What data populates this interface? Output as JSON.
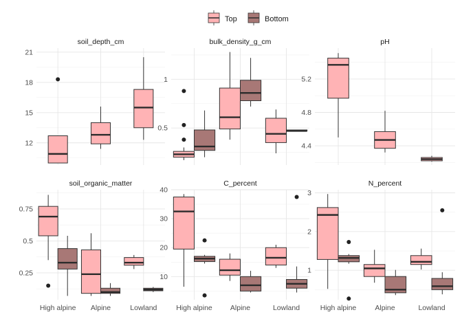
{
  "legend": {
    "placement": "top",
    "items": [
      {
        "label": "Top",
        "color": "#ffb3b5"
      },
      {
        "label": "Bottom",
        "color": "#a87876"
      }
    ]
  },
  "chart_data": [
    {
      "type": "box",
      "title": "soil_depth_cm",
      "categories": [
        "High alpine",
        "Alpine",
        "Lowland"
      ],
      "ylim": [
        9.8,
        21.4
      ],
      "yticks": [
        12,
        15,
        18,
        21
      ],
      "grid": true,
      "series": [
        {
          "name": "Top",
          "color": "#ffb3b5",
          "boxes": [
            {
              "category": "High alpine",
              "min": 10,
              "q1": 10,
              "median": 10.9,
              "q3": 12.7,
              "max": 12.7,
              "outliers": [
                18.3
              ]
            },
            {
              "category": "Alpine",
              "min": 11.4,
              "q1": 11.9,
              "median": 12.8,
              "q3": 14,
              "max": 15.6,
              "outliers": []
            },
            {
              "category": "Lowland",
              "min": 12.3,
              "q1": 13.5,
              "median": 15.5,
              "q3": 17.3,
              "max": 20.5,
              "outliers": []
            }
          ]
        }
      ]
    },
    {
      "type": "box",
      "title": "bulk_density_g_cm",
      "categories": [
        "High alpine",
        "Alpine",
        "Lowland"
      ],
      "ylim": [
        0.12,
        1.32
      ],
      "yticks": [
        0.5,
        1.0
      ],
      "grid": true,
      "series": [
        {
          "name": "Top",
          "color": "#ffb3b5",
          "boxes": [
            {
              "category": "High alpine",
              "min": 0.17,
              "q1": 0.2,
              "median": 0.23,
              "q3": 0.26,
              "max": 0.3,
              "outliers": [
                0.38,
                0.53,
                0.88
              ]
            },
            {
              "category": "Alpine",
              "min": 0.38,
              "q1": 0.49,
              "median": 0.61,
              "q3": 0.91,
              "max": 1.28,
              "outliers": []
            },
            {
              "category": "Lowland",
              "min": 0.24,
              "q1": 0.35,
              "median": 0.44,
              "q3": 0.6,
              "max": 0.69,
              "outliers": []
            }
          ]
        },
        {
          "name": "Bottom",
          "color": "#a87876",
          "boxes": [
            {
              "category": "High alpine",
              "min": 0.2,
              "q1": 0.27,
              "median": 0.31,
              "q3": 0.48,
              "max": 0.68,
              "outliers": []
            },
            {
              "category": "Alpine",
              "min": 0.72,
              "q1": 0.78,
              "median": 0.86,
              "q3": 0.99,
              "max": 1.22,
              "outliers": []
            },
            {
              "category": "Lowland",
              "min": 0.47,
              "q1": 0.47,
              "median": 0.47,
              "q3": 0.48,
              "max": 0.48,
              "outliers": []
            }
          ]
        }
      ]
    },
    {
      "type": "box",
      "title": "pH",
      "categories": [
        "High alpine",
        "Alpine",
        "Lowland"
      ],
      "ylim": [
        4.17,
        5.57
      ],
      "yticks": [
        4.4,
        4.8,
        5.2
      ],
      "grid": true,
      "series": [
        {
          "name": "Top",
          "color": "#ffb3b5",
          "boxes": [
            {
              "category": "High alpine",
              "min": 4.5,
              "q1": 4.97,
              "median": 5.37,
              "q3": 5.45,
              "max": 5.51,
              "outliers": []
            },
            {
              "category": "Alpine",
              "min": 4.32,
              "q1": 4.37,
              "median": 4.47,
              "q3": 4.57,
              "max": 4.82,
              "outliers": []
            },
            {
              "category": "Lowland",
              "min": 4.21,
              "q1": 4.22,
              "median": 4.24,
              "q3": 4.26,
              "max": 4.28,
              "outliers": []
            }
          ]
        }
      ]
    },
    {
      "type": "box",
      "title": "soil_organic_matter",
      "categories": [
        "High alpine",
        "Alpine",
        "Lowland"
      ],
      "ylim": [
        0.04,
        0.9
      ],
      "yticks": [
        0.25,
        0.5,
        0.75
      ],
      "grid": true,
      "series": [
        {
          "name": "Top",
          "color": "#ffb3b5",
          "boxes": [
            {
              "category": "High alpine",
              "min": 0.35,
              "q1": 0.54,
              "median": 0.69,
              "q3": 0.77,
              "max": 0.86,
              "outliers": [
                0.15
              ]
            },
            {
              "category": "Alpine",
              "min": 0.07,
              "q1": 0.09,
              "median": 0.24,
              "q3": 0.43,
              "max": 0.56,
              "outliers": []
            },
            {
              "category": "Lowland",
              "min": 0.28,
              "q1": 0.31,
              "median": 0.33,
              "q3": 0.37,
              "max": 0.39,
              "outliers": []
            }
          ]
        },
        {
          "name": "Bottom",
          "color": "#a87876",
          "boxes": [
            {
              "category": "High alpine",
              "min": 0.07,
              "q1": 0.28,
              "median": 0.33,
              "q3": 0.44,
              "max": 0.54,
              "outliers": []
            },
            {
              "category": "Alpine",
              "min": 0.07,
              "q1": 0.09,
              "median": 0.1,
              "q3": 0.13,
              "max": 0.17,
              "outliers": []
            },
            {
              "category": "Lowland",
              "min": 0.1,
              "q1": 0.11,
              "median": 0.12,
              "q3": 0.13,
              "max": 0.14,
              "outliers": []
            }
          ]
        }
      ]
    },
    {
      "type": "box",
      "title": "C_percent",
      "categories": [
        "High alpine",
        "Alpine",
        "Lowland"
      ],
      "ylim": [
        2,
        40
      ],
      "yticks": [
        10,
        20,
        30,
        40
      ],
      "grid": true,
      "series": [
        {
          "name": "Top",
          "color": "#ffb3b5",
          "boxes": [
            {
              "category": "High alpine",
              "min": 6.5,
              "q1": 19.5,
              "median": 32.5,
              "q3": 37.5,
              "max": 38.5,
              "outliers": []
            },
            {
              "category": "Alpine",
              "min": 8.5,
              "q1": 10.5,
              "median": 12.2,
              "q3": 16,
              "max": 18,
              "outliers": []
            },
            {
              "category": "Lowland",
              "min": 13,
              "q1": 14,
              "median": 16.5,
              "q3": 20,
              "max": 21,
              "outliers": []
            }
          ]
        },
        {
          "name": "Bottom",
          "color": "#a87876",
          "boxes": [
            {
              "category": "High alpine",
              "min": 14.5,
              "q1": 15.2,
              "median": 16.2,
              "q3": 17,
              "max": 17.5,
              "outliers": [
                22.5,
                3.5
              ]
            },
            {
              "category": "Alpine",
              "min": 4.5,
              "q1": 5,
              "median": 7,
              "q3": 10,
              "max": 12,
              "outliers": []
            },
            {
              "category": "Lowland",
              "min": 4.5,
              "q1": 6,
              "median": 7.5,
              "q3": 9,
              "max": 13.5,
              "outliers": [
                37.5
              ]
            }
          ]
        }
      ]
    },
    {
      "type": "box",
      "title": "N_percent",
      "categories": [
        "High alpine",
        "Alpine",
        "Lowland"
      ],
      "ylim": [
        0.24,
        3.08
      ],
      "yticks": [
        1,
        2,
        3
      ],
      "grid": true,
      "series": [
        {
          "name": "Top",
          "color": "#ffb3b5",
          "boxes": [
            {
              "category": "High alpine",
              "min": 0.52,
              "q1": 1.28,
              "median": 2.43,
              "q3": 2.62,
              "max": 2.97,
              "outliers": []
            },
            {
              "category": "Alpine",
              "min": 0.68,
              "q1": 0.84,
              "median": 1.05,
              "q3": 1.15,
              "max": 1.53,
              "outliers": []
            },
            {
              "category": "Lowland",
              "min": 1.02,
              "q1": 1.15,
              "median": 1.22,
              "q3": 1.38,
              "max": 1.56,
              "outliers": []
            }
          ]
        },
        {
          "name": "Bottom",
          "color": "#a87876",
          "boxes": [
            {
              "category": "High alpine",
              "min": 1.17,
              "q1": 1.22,
              "median": 1.32,
              "q3": 1.38,
              "max": 1.42,
              "outliers": [
                1.73,
                0.27
              ]
            },
            {
              "category": "Alpine",
              "min": 0.36,
              "q1": 0.42,
              "median": 0.5,
              "q3": 0.84,
              "max": 1.01,
              "outliers": []
            },
            {
              "category": "Lowland",
              "min": 0.38,
              "q1": 0.5,
              "median": 0.59,
              "q3": 0.79,
              "max": 0.95,
              "outliers": [
                2.55
              ]
            }
          ]
        }
      ]
    }
  ]
}
